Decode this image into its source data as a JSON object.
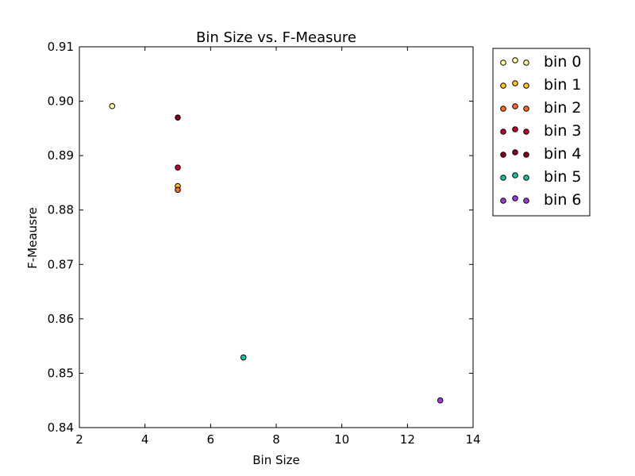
{
  "chart_data": {
    "type": "scatter",
    "title": "Bin Size vs. F-Measure",
    "xlabel": "Bin Size",
    "ylabel": "F-Meausre",
    "xlim": [
      2,
      14
    ],
    "ylim": [
      0.84,
      0.91
    ],
    "xticks": [
      2,
      4,
      6,
      8,
      10,
      12,
      14
    ],
    "yticks": [
      0.84,
      0.85,
      0.86,
      0.87,
      0.88,
      0.89,
      0.9,
      0.91
    ],
    "ytick_labels": [
      "0.84",
      "0.85",
      "0.86",
      "0.87",
      "0.88",
      "0.89",
      "0.90",
      "0.91"
    ],
    "grid": false,
    "legend_position": "outside-right",
    "series": [
      {
        "name": "bin 0",
        "color": "#ffff99",
        "points": [
          {
            "x": 3,
            "y": 0.8991
          }
        ]
      },
      {
        "name": "bin 1",
        "color": "#fec42c",
        "points": [
          {
            "x": 5,
            "y": 0.8844
          }
        ]
      },
      {
        "name": "bin 2",
        "color": "#fd6a23",
        "points": [
          {
            "x": 5,
            "y": 0.8837
          }
        ]
      },
      {
        "name": "bin 3",
        "color": "#c40030",
        "points": [
          {
            "x": 5,
            "y": 0.8878
          }
        ]
      },
      {
        "name": "bin 4",
        "color": "#86001c",
        "points": [
          {
            "x": 5,
            "y": 0.897
          }
        ]
      },
      {
        "name": "bin 5",
        "color": "#1fbf9f",
        "points": [
          {
            "x": 7,
            "y": 0.8529
          }
        ]
      },
      {
        "name": "bin 6",
        "color": "#9b3fd1",
        "points": [
          {
            "x": 13,
            "y": 0.845
          }
        ]
      }
    ]
  }
}
